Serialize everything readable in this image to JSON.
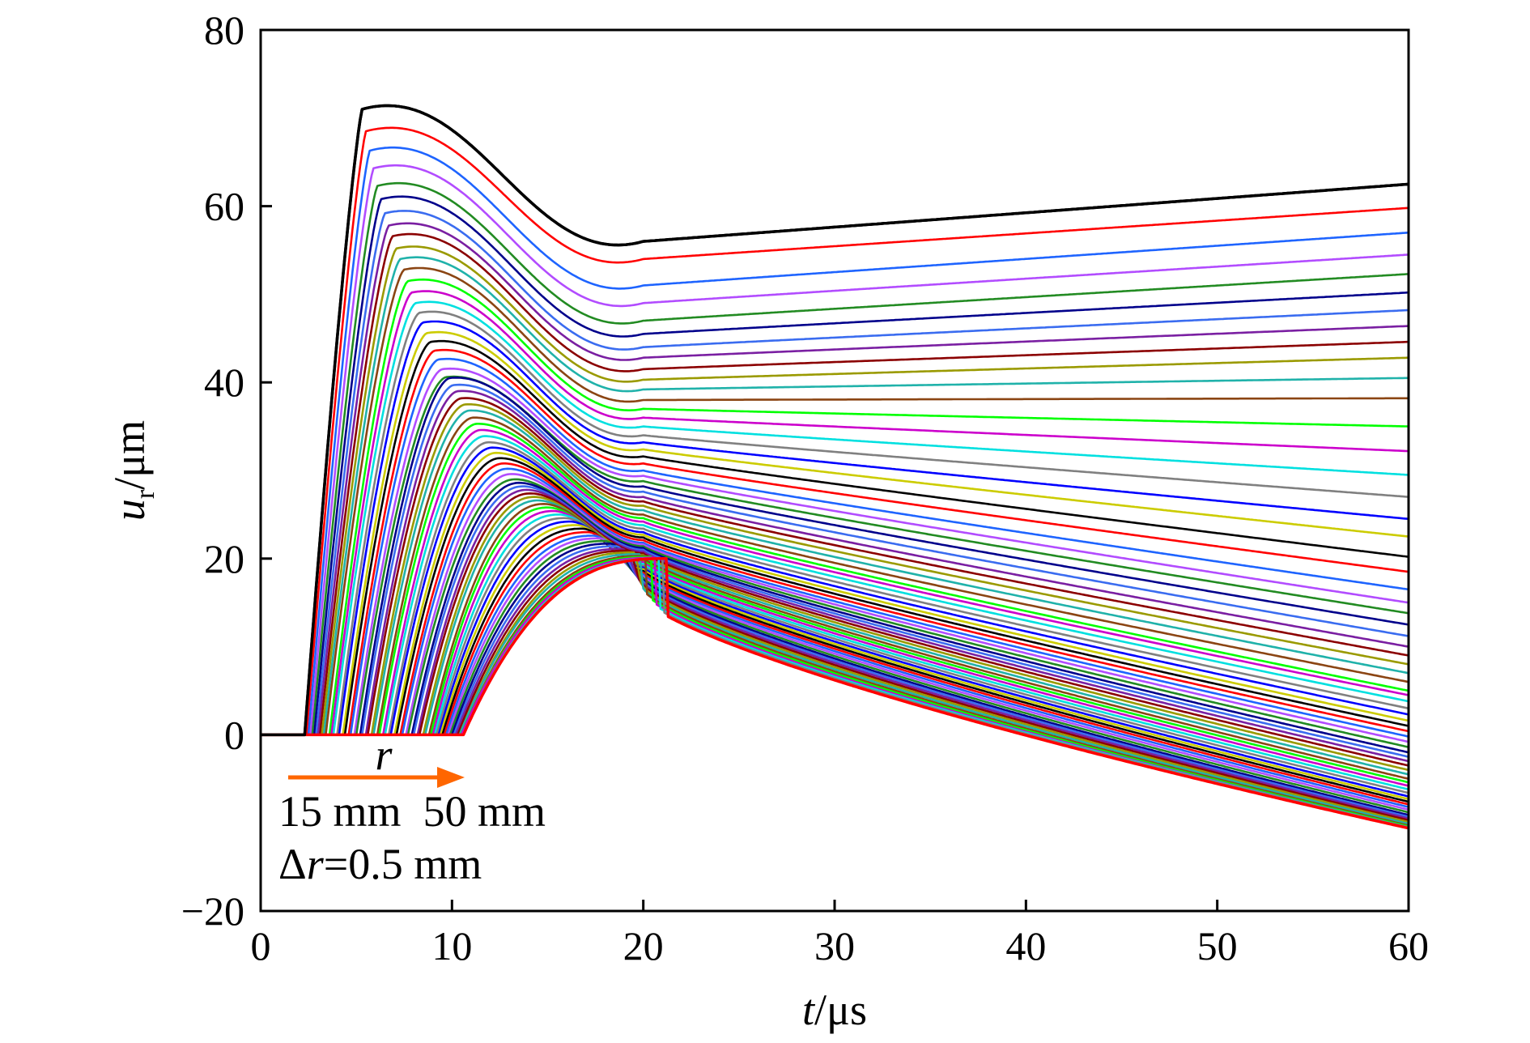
{
  "chart_data": {
    "type": "line",
    "title": "",
    "xlabel": {
      "var": "t",
      "unit": "/μs"
    },
    "ylabel": {
      "var": "u",
      "sub": "r",
      "unit": "/μm"
    },
    "xlim": [
      0,
      60
    ],
    "ylim": [
      -20,
      80
    ],
    "xticks": [
      0,
      10,
      20,
      30,
      40,
      50,
      60
    ],
    "yticks": [
      -20,
      0,
      20,
      40,
      60,
      80
    ],
    "grid": false,
    "legend": "none",
    "annotations": {
      "r_label": "r",
      "range_text": "15 mm  50 mm",
      "step_var": "Δr",
      "step_val": "=0.5 mm"
    },
    "arrow_color": "#ff6600",
    "palette": [
      "#000000",
      "#ff0000",
      "#1e64ff",
      "#b24cff",
      "#228b22",
      "#00008b",
      "#3a6cf0",
      "#7a1fa2",
      "#8b0000",
      "#9a9a00",
      "#20b2aa",
      "#8b4513",
      "#00ff00",
      "#cc00cc",
      "#00e0e0",
      "#808080",
      "#0000ff",
      "#cccc00"
    ],
    "series_note": "71 curves for r = 15 mm to 50 mm in steps of 0.5 mm; each series gives onset time t0 (μs), peak value and time, plateau value at t=20 μs, and final value at t=60 μs",
    "series": [
      {
        "t0": 2.3,
        "peak": 71.0,
        "tp": 5.3,
        "v20": 56.0,
        "v60": 62.5
      },
      {
        "t0": 2.4,
        "peak": 68.5,
        "tp": 5.5,
        "v20": 54.0,
        "v60": 59.8
      },
      {
        "t0": 2.5,
        "peak": 66.3,
        "tp": 5.7,
        "v20": 51.0,
        "v60": 57.0
      },
      {
        "t0": 2.6,
        "peak": 64.3,
        "tp": 5.9,
        "v20": 49.0,
        "v60": 54.5
      },
      {
        "t0": 2.7,
        "peak": 62.3,
        "tp": 6.1,
        "v20": 47.0,
        "v60": 52.3
      },
      {
        "t0": 2.8,
        "peak": 60.8,
        "tp": 6.3,
        "v20": 45.5,
        "v60": 50.2
      },
      {
        "t0": 2.9,
        "peak": 59.2,
        "tp": 6.5,
        "v20": 44.0,
        "v60": 48.2
      },
      {
        "t0": 3.0,
        "peak": 57.8,
        "tp": 6.7,
        "v20": 42.8,
        "v60": 46.4
      },
      {
        "t0": 3.1,
        "peak": 56.6,
        "tp": 6.9,
        "v20": 41.5,
        "v60": 44.6
      },
      {
        "t0": 3.2,
        "peak": 55.2,
        "tp": 7.1,
        "v20": 40.3,
        "v60": 42.8
      },
      {
        "t0": 3.3,
        "peak": 54.0,
        "tp": 7.3,
        "v20": 39.2,
        "v60": 40.5
      },
      {
        "t0": 3.4,
        "peak": 52.8,
        "tp": 7.5,
        "v20": 38.0,
        "v60": 38.2
      },
      {
        "t0": 3.6,
        "peak": 51.5,
        "tp": 7.7,
        "v20": 37.0,
        "v60": 35.0
      },
      {
        "t0": 3.7,
        "peak": 50.2,
        "tp": 7.9,
        "v20": 36.0,
        "v60": 32.2
      },
      {
        "t0": 3.8,
        "peak": 49.0,
        "tp": 8.1,
        "v20": 35.0,
        "v60": 29.5
      },
      {
        "t0": 4.0,
        "peak": 47.9,
        "tp": 8.3,
        "v20": 34.0,
        "v60": 27.0
      },
      {
        "t0": 4.1,
        "peak": 46.8,
        "tp": 8.5,
        "v20": 33.2,
        "v60": 24.5
      },
      {
        "t0": 4.3,
        "peak": 45.6,
        "tp": 8.7,
        "v20": 32.4,
        "v60": 22.5
      },
      {
        "t0": 4.4,
        "peak": 44.6,
        "tp": 8.9,
        "v20": 31.6,
        "v60": 20.2
      },
      {
        "t0": 4.6,
        "peak": 43.6,
        "tp": 9.1,
        "v20": 30.8,
        "v60": 18.5
      },
      {
        "t0": 4.7,
        "peak": 42.6,
        "tp": 9.3,
        "v20": 30.0,
        "v60": 16.5
      },
      {
        "t0": 4.9,
        "peak": 41.5,
        "tp": 9.5,
        "v20": 29.4,
        "v60": 15.0
      },
      {
        "t0": 5.0,
        "peak": 40.6,
        "tp": 9.7,
        "v20": 28.8,
        "v60": 13.8
      },
      {
        "t0": 5.2,
        "peak": 40.5,
        "tp": 9.9,
        "v20": 28.2,
        "v60": 12.5
      },
      {
        "t0": 5.3,
        "peak": 39.7,
        "tp": 10.1,
        "v20": 27.6,
        "v60": 11.2
      },
      {
        "t0": 5.5,
        "peak": 39.0,
        "tp": 10.3,
        "v20": 27.0,
        "v60": 10.0
      },
      {
        "t0": 5.6,
        "peak": 38.2,
        "tp": 10.5,
        "v20": 26.5,
        "v60": 9.0
      },
      {
        "t0": 5.8,
        "peak": 37.5,
        "tp": 10.7,
        "v20": 26.0,
        "v60": 8.0
      },
      {
        "t0": 5.9,
        "peak": 36.8,
        "tp": 10.9,
        "v20": 25.5,
        "v60": 7.0
      },
      {
        "t0": 6.1,
        "peak": 36.0,
        "tp": 11.1,
        "v20": 25.0,
        "v60": 6.0
      },
      {
        "t0": 6.2,
        "peak": 35.3,
        "tp": 11.3,
        "v20": 24.6,
        "v60": 5.0
      },
      {
        "t0": 6.4,
        "peak": 34.6,
        "tp": 11.5,
        "v20": 24.2,
        "v60": 4.5
      },
      {
        "t0": 6.5,
        "peak": 33.9,
        "tp": 11.7,
        "v20": 23.8,
        "v60": 3.8
      },
      {
        "t0": 6.7,
        "peak": 33.2,
        "tp": 11.9,
        "v20": 23.4,
        "v60": 3.0
      },
      {
        "t0": 6.8,
        "peak": 32.6,
        "tp": 12.1,
        "v20": 23.0,
        "v60": 2.3
      },
      {
        "t0": 7.0,
        "peak": 32.0,
        "tp": 12.3,
        "v20": 22.7,
        "v60": 1.6
      },
      {
        "t0": 7.1,
        "peak": 31.4,
        "tp": 12.5,
        "v20": 22.4,
        "v60": 1.0
      },
      {
        "t0": 7.3,
        "peak": 30.8,
        "tp": 12.7,
        "v20": 22.1,
        "v60": 0.4
      },
      {
        "t0": 7.4,
        "peak": 30.2,
        "tp": 12.9,
        "v20": 21.8,
        "v60": -0.2
      },
      {
        "t0": 7.6,
        "peak": 29.6,
        "tp": 13.1,
        "v20": 21.6,
        "v60": -0.8
      },
      {
        "t0": 7.7,
        "peak": 29.0,
        "tp": 13.3,
        "v20": 21.4,
        "v60": -1.4
      },
      {
        "t0": 7.9,
        "peak": 28.6,
        "tp": 13.5,
        "v20": 21.2,
        "v60": -2.0
      },
      {
        "t0": 8.0,
        "peak": 28.2,
        "tp": 13.7,
        "v20": 21.0,
        "v60": -2.5
      },
      {
        "t0": 8.2,
        "peak": 27.8,
        "tp": 13.9,
        "v20": 20.8,
        "v60": -3.0
      },
      {
        "t0": 8.3,
        "peak": 27.4,
        "tp": 14.1,
        "v20": 20.6,
        "v60": -3.5
      },
      {
        "t0": 8.5,
        "peak": 27.0,
        "tp": 14.3,
        "v20": 20.4,
        "v60": -4.0
      },
      {
        "t0": 8.6,
        "peak": 26.6,
        "tp": 14.5,
        "v20": 20.2,
        "v60": -4.5
      },
      {
        "t0": 8.8,
        "peak": 26.2,
        "tp": 14.8,
        "v20": 20.0,
        "v60": -5.0
      },
      {
        "t0": 8.9,
        "peak": 25.8,
        "tp": 15.0,
        "v20": 19.8,
        "v60": -5.4
      },
      {
        "t0": 9.0,
        "peak": 25.4,
        "tp": 15.3,
        "v20": 19.6,
        "v60": -5.8
      },
      {
        "t0": 9.1,
        "peak": 25.0,
        "tp": 15.6,
        "v20": 19.4,
        "v60": -6.2
      },
      {
        "t0": 9.2,
        "peak": 24.6,
        "tp": 15.9,
        "v20": 19.2,
        "v60": -6.6
      },
      {
        "t0": 9.3,
        "peak": 24.2,
        "tp": 16.2,
        "v20": 19.0,
        "v60": -7.0
      },
      {
        "t0": 9.4,
        "peak": 23.8,
        "tp": 16.5,
        "v20": 18.8,
        "v60": -7.3
      },
      {
        "t0": 9.5,
        "peak": 23.4,
        "tp": 16.8,
        "v20": 18.6,
        "v60": -7.6
      },
      {
        "t0": 9.6,
        "peak": 23.0,
        "tp": 17.1,
        "v20": 18.4,
        "v60": -7.9
      },
      {
        "t0": 9.7,
        "peak": 22.6,
        "tp": 17.4,
        "v20": 18.2,
        "v60": -8.2
      },
      {
        "t0": 9.8,
        "peak": 22.3,
        "tp": 17.7,
        "v20": 18.0,
        "v60": -8.5
      },
      {
        "t0": 9.9,
        "peak": 22.0,
        "tp": 18.0,
        "v20": 17.8,
        "v60": -8.8
      },
      {
        "t0": 10.0,
        "peak": 21.7,
        "tp": 18.3,
        "v20": 17.6,
        "v60": -9.1
      },
      {
        "t0": 10.1,
        "peak": 21.4,
        "tp": 18.6,
        "v20": 17.4,
        "v60": -9.3
      },
      {
        "t0": 10.2,
        "peak": 21.1,
        "tp": 18.9,
        "v20": 17.2,
        "v60": -9.5
      },
      {
        "t0": 10.3,
        "peak": 20.9,
        "tp": 19.2,
        "v20": 17.0,
        "v60": -9.7
      },
      {
        "t0": 10.4,
        "peak": 20.7,
        "tp": 19.5,
        "v20": 16.8,
        "v60": -9.9
      },
      {
        "t0": 10.4,
        "peak": 20.5,
        "tp": 19.8,
        "v20": 16.6,
        "v60": -10.1
      },
      {
        "t0": 10.5,
        "peak": 20.3,
        "tp": 20.1,
        "v20": 16.4,
        "v60": -10.3
      },
      {
        "t0": 10.5,
        "peak": 20.2,
        "tp": 20.4,
        "v20": 16.2,
        "v60": -10.4
      },
      {
        "t0": 10.5,
        "peak": 20.1,
        "tp": 20.6,
        "v20": 16.0,
        "v60": -10.5
      },
      {
        "t0": 10.6,
        "peak": 20.0,
        "tp": 20.8,
        "v20": 15.8,
        "v60": -10.5
      },
      {
        "t0": 10.6,
        "peak": 20.0,
        "tp": 21.0,
        "v20": 15.6,
        "v60": -10.5
      },
      {
        "t0": 10.6,
        "peak": 20.0,
        "tp": 21.2,
        "v20": 15.4,
        "v60": -10.6
      }
    ]
  }
}
